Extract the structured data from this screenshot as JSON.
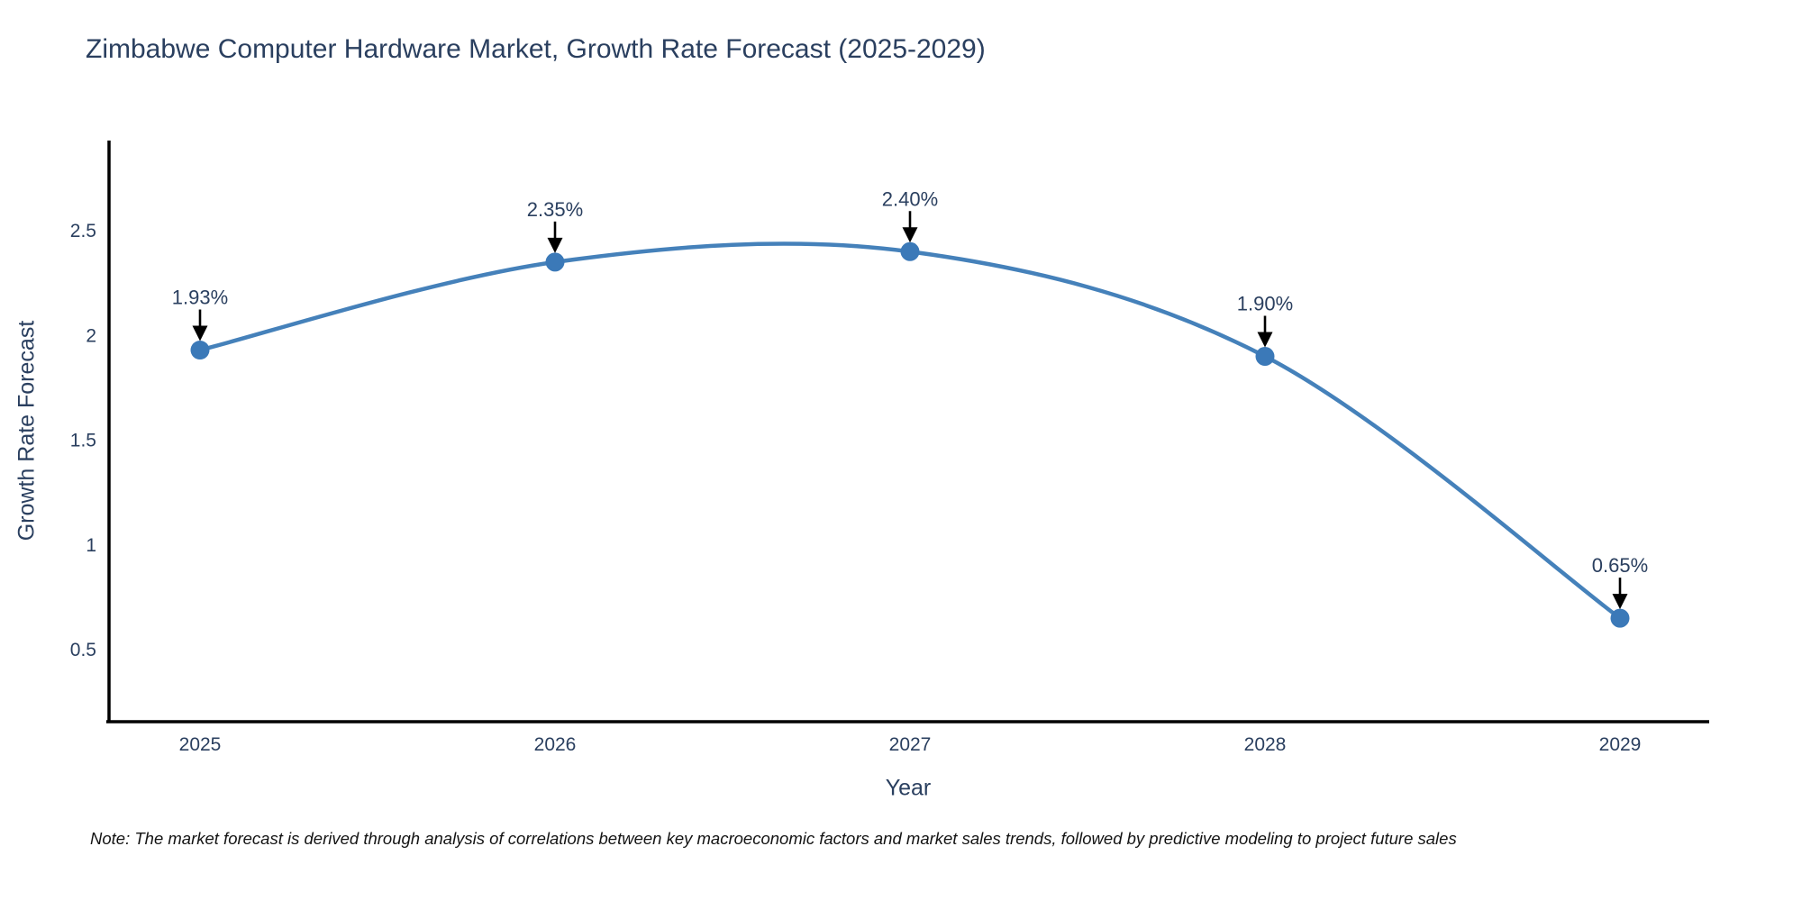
{
  "chart": {
    "title": "Zimbabwe Computer Hardware Market, Growth Rate Forecast (2025-2029)",
    "x_axis_title": "Year",
    "y_axis_title": "Growth Rate Forecast",
    "footnote": "Note: The market forecast is derived through analysis of correlations between key macroeconomic factors and market sales trends, followed by predictive modeling to project future sales"
  },
  "chart_data": {
    "type": "line",
    "title": "Zimbabwe Computer Hardware Market, Growth Rate Forecast (2025-2029)",
    "xlabel": "Year",
    "ylabel": "Growth Rate Forecast",
    "line_shape": "spline",
    "grid": false,
    "legend_position": "none",
    "categories": [
      "2025",
      "2026",
      "2027",
      "2028",
      "2029"
    ],
    "values": [
      1.93,
      2.35,
      2.4,
      1.9,
      0.65
    ],
    "point_labels": [
      "1.93%",
      "2.35%",
      "2.40%",
      "1.90%",
      "0.65%"
    ],
    "ytick_values": [
      0.5,
      1,
      1.5,
      2,
      2.5
    ],
    "ytick_labels": [
      "0.5",
      "1",
      "1.5",
      "2",
      "2.5"
    ],
    "ylim": [
      0.16,
      3.05
    ],
    "colors": {
      "line": "#4581ba",
      "marker": "#3b79b8",
      "axis": "#000000",
      "tick_text": "#2a3f5f",
      "annotation_text": "#2a3f5f",
      "annotation_arrow": "#000000"
    }
  }
}
